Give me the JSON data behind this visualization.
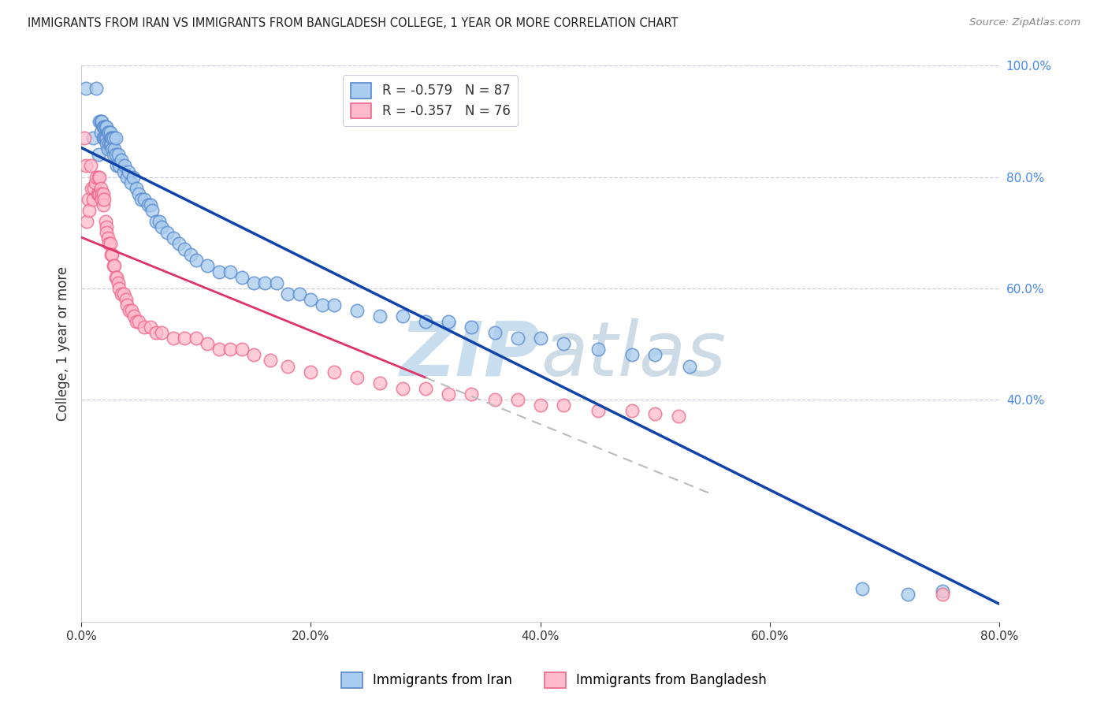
{
  "title": "IMMIGRANTS FROM IRAN VS IMMIGRANTS FROM BANGLADESH COLLEGE, 1 YEAR OR MORE CORRELATION CHART",
  "source": "Source: ZipAtlas.com",
  "ylabel_left": "College, 1 year or more",
  "xlim": [
    0.0,
    0.8
  ],
  "ylim": [
    0.0,
    1.0
  ],
  "xtick_labels": [
    "0.0%",
    "20.0%",
    "40.0%",
    "60.0%",
    "80.0%"
  ],
  "xtick_vals": [
    0.0,
    0.2,
    0.4,
    0.6,
    0.8
  ],
  "ytick_right_labels": [
    "100.0%",
    "80.0%",
    "60.0%",
    "40.0%"
  ],
  "ytick_right_vals": [
    1.0,
    0.8,
    0.6,
    0.4
  ],
  "iran_color": "#AACCEE",
  "iran_edge_color": "#5588CC",
  "bangladesh_color": "#FFBBCC",
  "bangladesh_edge_color": "#EE6688",
  "iran_line_color": "#1144AA",
  "bangladesh_line_color": "#DD3366",
  "iran_R": -0.579,
  "iran_N": 87,
  "bangladesh_R": -0.357,
  "bangladesh_N": 76,
  "watermark_color": "#D8EEFF",
  "grid_color": "#CCCCDD",
  "iran_scatter_x": [
    0.004,
    0.01,
    0.013,
    0.015,
    0.016,
    0.017,
    0.017,
    0.018,
    0.019,
    0.019,
    0.02,
    0.02,
    0.021,
    0.021,
    0.022,
    0.022,
    0.022,
    0.023,
    0.023,
    0.024,
    0.024,
    0.025,
    0.025,
    0.026,
    0.026,
    0.027,
    0.027,
    0.028,
    0.028,
    0.029,
    0.03,
    0.03,
    0.031,
    0.032,
    0.033,
    0.035,
    0.037,
    0.038,
    0.04,
    0.041,
    0.043,
    0.045,
    0.048,
    0.05,
    0.052,
    0.055,
    0.058,
    0.06,
    0.062,
    0.065,
    0.068,
    0.07,
    0.075,
    0.08,
    0.085,
    0.09,
    0.095,
    0.1,
    0.11,
    0.12,
    0.13,
    0.14,
    0.15,
    0.16,
    0.17,
    0.18,
    0.19,
    0.2,
    0.21,
    0.22,
    0.24,
    0.26,
    0.28,
    0.3,
    0.32,
    0.34,
    0.36,
    0.38,
    0.4,
    0.42,
    0.45,
    0.48,
    0.5,
    0.53,
    0.68,
    0.72,
    0.75
  ],
  "iran_scatter_y": [
    0.96,
    0.87,
    0.96,
    0.84,
    0.9,
    0.9,
    0.88,
    0.9,
    0.89,
    0.87,
    0.89,
    0.87,
    0.89,
    0.87,
    0.89,
    0.87,
    0.86,
    0.88,
    0.85,
    0.88,
    0.86,
    0.88,
    0.86,
    0.87,
    0.86,
    0.87,
    0.85,
    0.87,
    0.84,
    0.85,
    0.87,
    0.84,
    0.82,
    0.84,
    0.82,
    0.83,
    0.81,
    0.82,
    0.8,
    0.81,
    0.79,
    0.8,
    0.78,
    0.77,
    0.76,
    0.76,
    0.75,
    0.75,
    0.74,
    0.72,
    0.72,
    0.71,
    0.7,
    0.69,
    0.68,
    0.67,
    0.66,
    0.65,
    0.64,
    0.63,
    0.63,
    0.62,
    0.61,
    0.61,
    0.61,
    0.59,
    0.59,
    0.58,
    0.57,
    0.57,
    0.56,
    0.55,
    0.55,
    0.54,
    0.54,
    0.53,
    0.52,
    0.51,
    0.51,
    0.5,
    0.49,
    0.48,
    0.48,
    0.46,
    0.06,
    0.05,
    0.055
  ],
  "bangladesh_scatter_x": [
    0.003,
    0.004,
    0.005,
    0.006,
    0.007,
    0.008,
    0.009,
    0.01,
    0.011,
    0.012,
    0.013,
    0.014,
    0.015,
    0.015,
    0.016,
    0.016,
    0.017,
    0.018,
    0.018,
    0.019,
    0.019,
    0.02,
    0.021,
    0.022,
    0.022,
    0.023,
    0.024,
    0.025,
    0.026,
    0.027,
    0.028,
    0.029,
    0.03,
    0.031,
    0.032,
    0.033,
    0.035,
    0.037,
    0.039,
    0.04,
    0.042,
    0.044,
    0.046,
    0.048,
    0.05,
    0.055,
    0.06,
    0.065,
    0.07,
    0.08,
    0.09,
    0.1,
    0.11,
    0.12,
    0.13,
    0.14,
    0.15,
    0.165,
    0.18,
    0.2,
    0.22,
    0.24,
    0.26,
    0.28,
    0.3,
    0.32,
    0.34,
    0.36,
    0.38,
    0.4,
    0.42,
    0.45,
    0.48,
    0.5,
    0.52,
    0.75
  ],
  "bangladesh_scatter_y": [
    0.87,
    0.82,
    0.72,
    0.76,
    0.74,
    0.82,
    0.78,
    0.76,
    0.78,
    0.79,
    0.8,
    0.77,
    0.8,
    0.77,
    0.8,
    0.77,
    0.78,
    0.77,
    0.76,
    0.77,
    0.75,
    0.76,
    0.72,
    0.71,
    0.7,
    0.69,
    0.68,
    0.68,
    0.66,
    0.66,
    0.64,
    0.64,
    0.62,
    0.62,
    0.61,
    0.6,
    0.59,
    0.59,
    0.58,
    0.57,
    0.56,
    0.56,
    0.55,
    0.54,
    0.54,
    0.53,
    0.53,
    0.52,
    0.52,
    0.51,
    0.51,
    0.51,
    0.5,
    0.49,
    0.49,
    0.49,
    0.48,
    0.47,
    0.46,
    0.45,
    0.45,
    0.44,
    0.43,
    0.42,
    0.42,
    0.41,
    0.41,
    0.4,
    0.4,
    0.39,
    0.39,
    0.38,
    0.38,
    0.375,
    0.37,
    0.05
  ]
}
